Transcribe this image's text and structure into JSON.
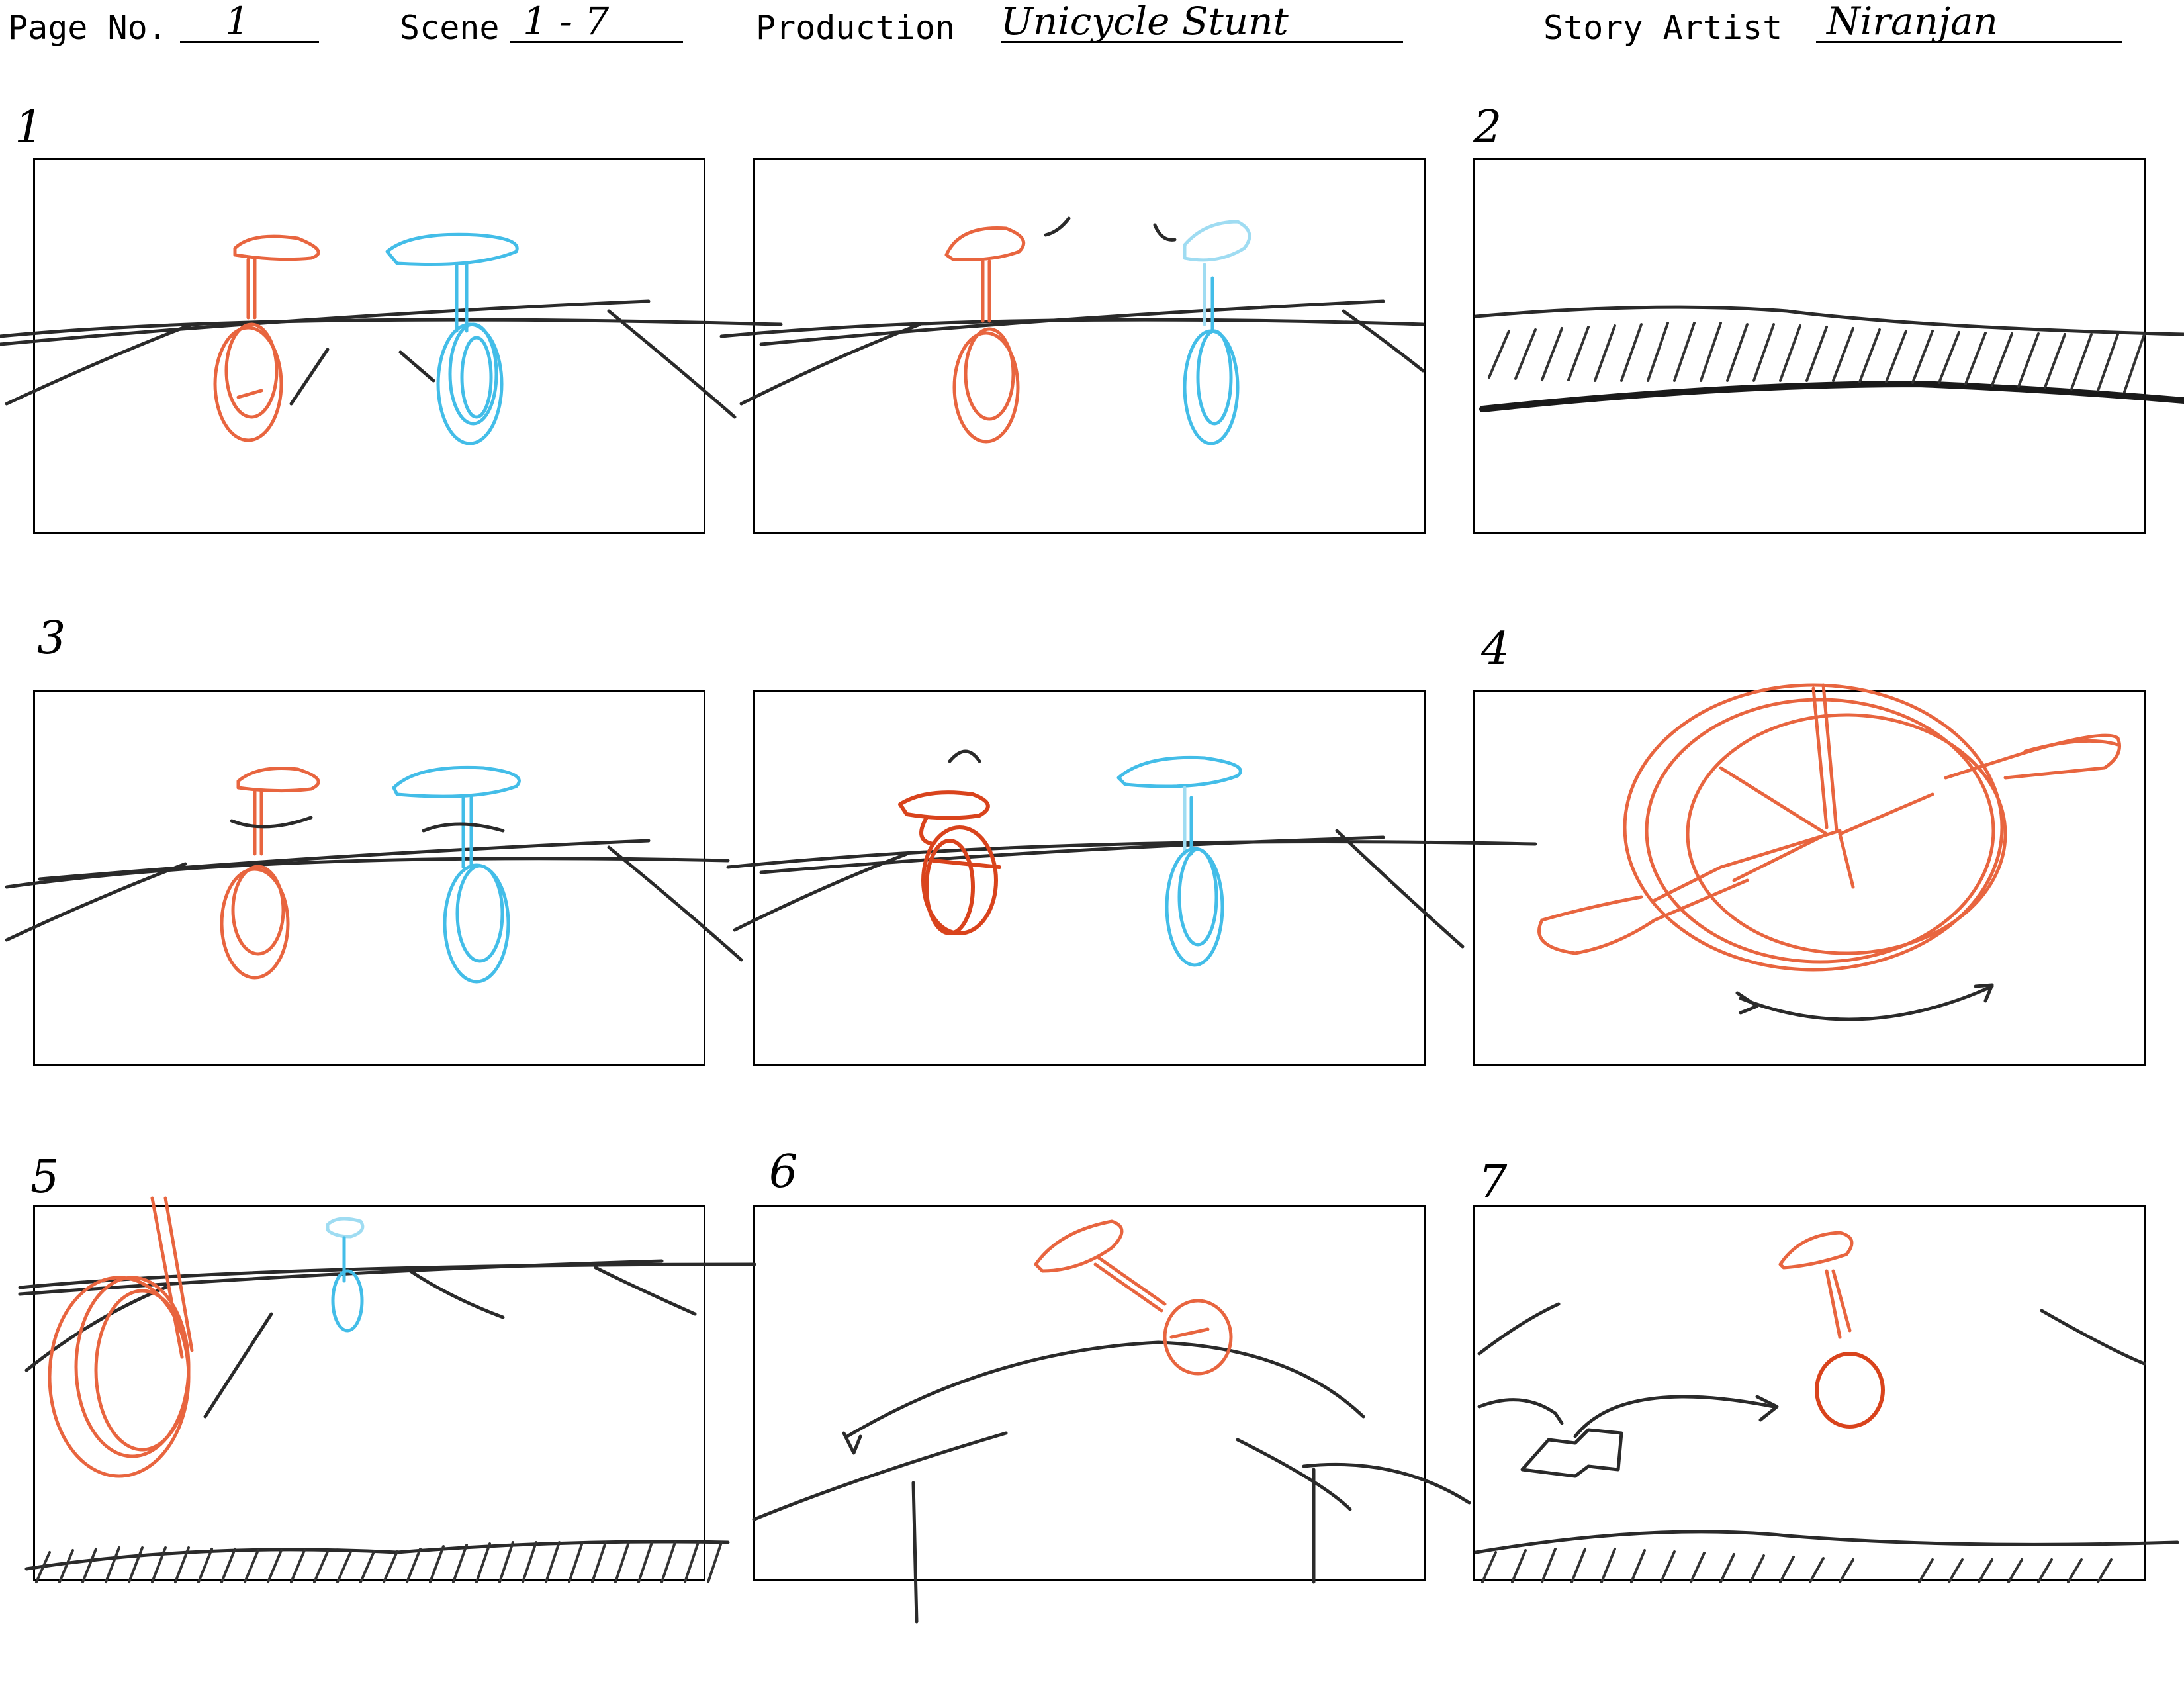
{
  "header": {
    "page_no_label": "Page No.",
    "page_no_value": "1",
    "scene_label": "Scene",
    "scene_value": "1 - 7",
    "production_label": "Production",
    "production_value": "Unicycle Stunt",
    "story_artist_label": "Story Artist",
    "story_artist_value": "Niranjan"
  },
  "panel_numbers": [
    "1",
    "2",
    "3",
    "4",
    "5",
    "6",
    "7"
  ],
  "colors": {
    "character_a": "#e8653f",
    "character_b": "#43bde8",
    "pencil": "#2a2a2a"
  }
}
